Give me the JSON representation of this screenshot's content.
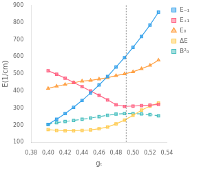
{
  "chart_data": {
    "type": "line",
    "xlabel": "gₜ",
    "ylabel": "E(1/cm)",
    "x": [
      0.4,
      0.41,
      0.42,
      0.43,
      0.44,
      0.45,
      0.46,
      0.47,
      0.48,
      0.49,
      0.5,
      0.51,
      0.52,
      0.53
    ],
    "series": [
      {
        "name": "E₋₁",
        "marker": "square",
        "line_style": "solid",
        "values": [
          205,
          235,
          268,
          305,
          345,
          388,
          435,
          485,
          540,
          595,
          655,
          718,
          785,
          860
        ]
      },
      {
        "name": "E₊₁",
        "marker": "square",
        "line_style": "solid",
        "values": [
          518,
          498,
          475,
          450,
          425,
          400,
          375,
          348,
          320,
          310,
          312,
          315,
          318,
          322
        ]
      },
      {
        "name": "E₀",
        "marker": "triangle",
        "line_style": "solid",
        "values": [
          415,
          428,
          438,
          448,
          458,
          462,
          470,
          478,
          490,
          500,
          512,
          530,
          550,
          580
        ]
      },
      {
        "name": "ΔE",
        "marker": "square",
        "line_style": "solid",
        "values": [
          175,
          170,
          168,
          168,
          170,
          173,
          180,
          190,
          208,
          230,
          258,
          288,
          312,
          330
        ]
      },
      {
        "name": "B²₀",
        "marker": "square",
        "line_style": "dashdot",
        "values": [
          205,
          215,
          222,
          228,
          235,
          242,
          250,
          258,
          265,
          268,
          268,
          266,
          262,
          255
        ]
      }
    ],
    "vline": 0.492,
    "xlim": [
      0.38,
      0.54
    ],
    "ylim": [
      100,
      900
    ],
    "xticks": [
      {
        "value": 0.38,
        "label": "0,38"
      },
      {
        "value": 0.4,
        "label": "0,40"
      },
      {
        "value": 0.42,
        "label": "0,42"
      },
      {
        "value": 0.44,
        "label": "0,44"
      },
      {
        "value": 0.46,
        "label": "0,46"
      },
      {
        "value": 0.48,
        "label": "0,48"
      },
      {
        "value": 0.5,
        "label": "0,50"
      },
      {
        "value": 0.52,
        "label": "0,52"
      },
      {
        "value": 0.54,
        "label": "0,54"
      }
    ],
    "yticks": [
      100,
      200,
      300,
      400,
      500,
      600,
      700,
      800,
      900
    ],
    "grid": false,
    "legend": "right"
  }
}
